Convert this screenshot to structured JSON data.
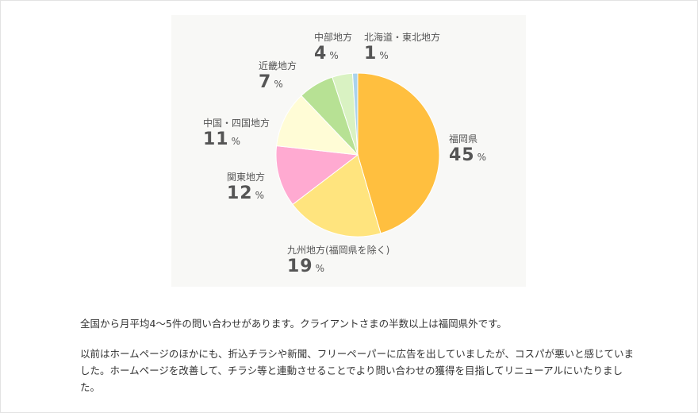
{
  "chart_data": {
    "type": "pie",
    "title": "",
    "slices": [
      {
        "label": "福岡県",
        "value": 45,
        "color": "#ffbf3f"
      },
      {
        "label": "九州地方(福岡県を除く)",
        "value": 19,
        "color": "#ffe47e"
      },
      {
        "label": "関東地方",
        "value": 12,
        "color": "#ffaad1"
      },
      {
        "label": "中国・四国地方",
        "value": 11,
        "color": "#fffcd6"
      },
      {
        "label": "近畿地方",
        "value": 7,
        "color": "#b7e194"
      },
      {
        "label": "中部地方",
        "value": 4,
        "color": "#d9f2c2"
      },
      {
        "label": "北海道・東北地方",
        "value": 1,
        "color": "#a9d3ec"
      }
    ],
    "unit": "%"
  },
  "body_text": {
    "paragraph_1": "全国から月平均4〜5件の問い合わせがあります。クライアントさまの半数以上は福岡県外です。",
    "paragraph_2": "以前はホームページのほかにも、折込チラシや新聞、フリーペーパーに広告を出していましたが、コスパが悪いと感じていました。ホームページを改善して、チラシ等と連動させることでより問い合わせの獲得を目指してリニューアルにいたりました。"
  }
}
